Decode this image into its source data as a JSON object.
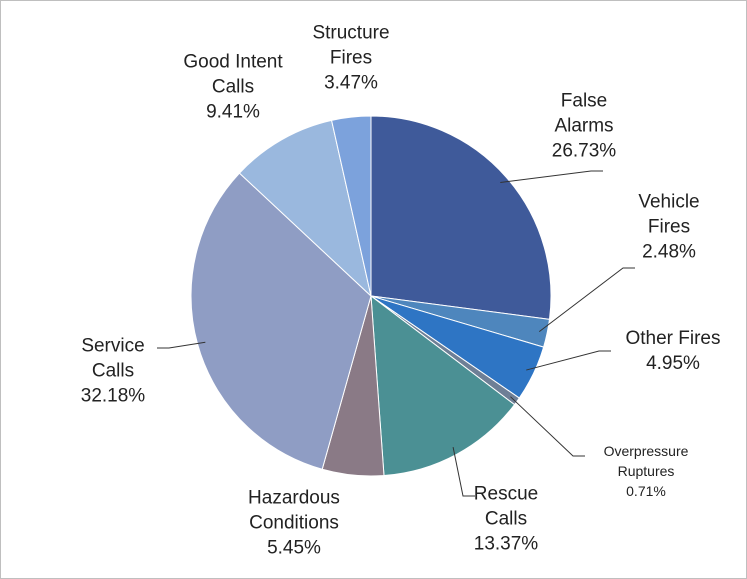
{
  "chart_data": {
    "type": "pie",
    "categories": [
      "False Alarms",
      "Vehicle Fires",
      "Other Fires",
      "Overpressure Ruptures",
      "Rescue Calls",
      "Hazardous Conditions",
      "Service Calls",
      "Good Intent Calls",
      "Structure Fires"
    ],
    "values": [
      26.73,
      2.48,
      4.95,
      0.71,
      13.37,
      5.45,
      32.18,
      9.41,
      3.47
    ],
    "value_labels": [
      "26.73%",
      "2.48%",
      "4.95%",
      "0.71%",
      "13.37%",
      "5.45%",
      "32.18%",
      "9.41%",
      "3.47%"
    ],
    "colors": [
      "#3f5a9a",
      "#4e86bd",
      "#2e75c4",
      "#6e7f96",
      "#4b9094",
      "#8a7a86",
      "#8f9dc4",
      "#9ab8de",
      "#7ca2dc"
    ]
  }
}
